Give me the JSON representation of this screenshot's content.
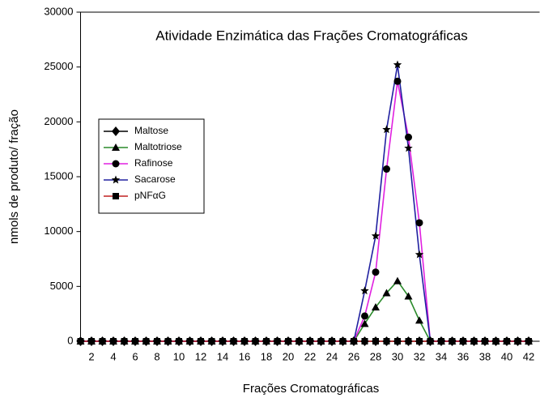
{
  "chart_data": {
    "type": "line",
    "title": "Atividade Enzimática das Frações Cromatográficas",
    "xlabel": "Frações Cromatográficas",
    "ylabel": "nmols de produto/ fração",
    "x": [
      1,
      2,
      3,
      4,
      5,
      6,
      7,
      8,
      9,
      10,
      11,
      12,
      13,
      14,
      15,
      16,
      17,
      18,
      19,
      20,
      21,
      22,
      23,
      24,
      25,
      26,
      27,
      28,
      29,
      30,
      31,
      32,
      33,
      34,
      35,
      36,
      37,
      38,
      39,
      40,
      41,
      42
    ],
    "series": [
      {
        "name": "Maltose",
        "color": "#000000",
        "marker": "diamond",
        "values": [
          0,
          0,
          0,
          0,
          0,
          0,
          0,
          0,
          0,
          0,
          0,
          0,
          0,
          0,
          0,
          0,
          0,
          0,
          0,
          0,
          0,
          0,
          0,
          0,
          0,
          0,
          0,
          0,
          0,
          0,
          0,
          0,
          0,
          0,
          0,
          0,
          0,
          0,
          0,
          0,
          0,
          0
        ]
      },
      {
        "name": "Maltotriose",
        "color": "#2a8a2a",
        "marker": "triangle",
        "values": [
          0,
          0,
          0,
          0,
          0,
          0,
          0,
          0,
          0,
          0,
          0,
          0,
          0,
          0,
          0,
          0,
          0,
          0,
          0,
          0,
          0,
          0,
          0,
          0,
          0,
          0,
          1600,
          3100,
          4400,
          5500,
          4100,
          1900,
          0,
          0,
          0,
          0,
          0,
          0,
          0,
          0,
          0,
          0
        ]
      },
      {
        "name": "Rafinose",
        "color": "#e020e0",
        "marker": "circle",
        "values": [
          0,
          0,
          0,
          0,
          0,
          0,
          0,
          0,
          0,
          0,
          0,
          0,
          0,
          0,
          0,
          0,
          0,
          0,
          0,
          0,
          0,
          0,
          0,
          0,
          0,
          0,
          2300,
          6300,
          15700,
          23700,
          18600,
          10800,
          0,
          0,
          0,
          0,
          0,
          0,
          0,
          0,
          0,
          0
        ]
      },
      {
        "name": "Sacarose",
        "color": "#2020a0",
        "marker": "star",
        "values": [
          0,
          0,
          0,
          0,
          0,
          0,
          0,
          0,
          0,
          0,
          0,
          0,
          0,
          0,
          0,
          0,
          0,
          0,
          0,
          0,
          0,
          0,
          0,
          0,
          0,
          0,
          4600,
          9600,
          19300,
          25200,
          17600,
          7900,
          0,
          0,
          0,
          0,
          0,
          0,
          0,
          0,
          0,
          0
        ]
      },
      {
        "name": "pNFαG",
        "color": "#c02020",
        "marker": "square",
        "values": [
          0,
          0,
          0,
          0,
          0,
          0,
          0,
          0,
          0,
          0,
          0,
          0,
          0,
          0,
          0,
          0,
          0,
          0,
          0,
          0,
          0,
          0,
          0,
          0,
          0,
          0,
          0,
          0,
          0,
          0,
          0,
          0,
          0,
          0,
          0,
          0,
          0,
          0,
          0,
          0,
          0,
          0
        ]
      }
    ],
    "xlim": [
      1,
      43
    ],
    "xticks": [
      2,
      4,
      6,
      8,
      10,
      12,
      14,
      16,
      18,
      20,
      22,
      24,
      26,
      28,
      30,
      32,
      34,
      36,
      38,
      40,
      42
    ],
    "ylim": [
      0,
      30000
    ],
    "yticks": [
      0,
      5000,
      10000,
      15000,
      20000,
      25000,
      30000
    ],
    "legend": "left"
  }
}
